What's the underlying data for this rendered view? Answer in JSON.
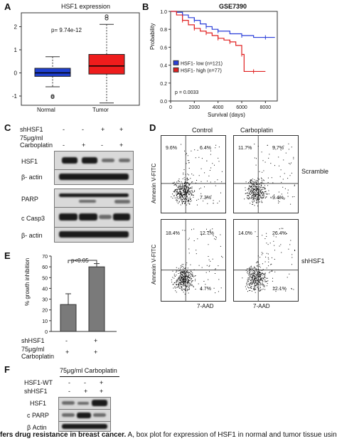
{
  "panel_a": {
    "letter": "A",
    "title": "HSF1 expression",
    "pvalue": "p= 9.74e-12",
    "categories": [
      "Normal",
      "Tumor"
    ],
    "yticks": [
      "2",
      "1",
      "0",
      "-1"
    ]
  },
  "panel_b": {
    "letter": "B",
    "title": "GSE7390",
    "ylabel": "Probability",
    "xlabel": "Survival (days)",
    "xticks": [
      "0",
      "2000",
      "4000",
      "6000",
      "8000"
    ],
    "yticks": [
      "0.0",
      "0.2",
      "0.4",
      "0.6",
      "0.8",
      "1.0"
    ],
    "legend": [
      "HSF1- low (n=121)",
      "HSF1- high (n=77)"
    ],
    "pvalue": "p = 0.0033",
    "colors": {
      "low": "#2b3fd9",
      "high": "#e02020"
    }
  },
  "panel_c": {
    "letter": "C",
    "row1_label": "shHSF1",
    "row1_signs": [
      "-",
      "-",
      "+",
      "+"
    ],
    "row2_label_a": "75μg/ml",
    "row2_label_b": "Carboplatin",
    "row2_signs": [
      "-",
      "+",
      "-",
      "+"
    ],
    "blots": [
      "HSF1",
      "β- actin",
      "PARP",
      "c Casp3",
      "β- actin"
    ]
  },
  "panel_d": {
    "letter": "D",
    "col_titles": [
      "Control",
      "Carboplatin"
    ],
    "row_titles": [
      "Scramble",
      "shHSF1"
    ],
    "ylabel": "Annexin V-FITC",
    "xlabel": "7-AAD",
    "plots": [
      {
        "ul": "9.6%",
        "ur": "6.4%",
        "lr": "7.3%"
      },
      {
        "ul": "11.7%",
        "ur": "9.7%",
        "lr": "9.4%"
      },
      {
        "ul": "18.4%",
        "ur": "12.7%",
        "lr": "4.7%"
      },
      {
        "ul": "14.0%",
        "ur": "26.4%",
        "lr": "12.1%"
      }
    ]
  },
  "panel_e": {
    "letter": "E",
    "ylabel": "% growth inhibition",
    "yticks": [
      "70",
      "60",
      "50",
      "40",
      "30",
      "20",
      "10",
      "0"
    ],
    "sig": "p<0.05",
    "row1_label": "shHSF1",
    "row1_signs": [
      "-",
      "+"
    ],
    "row2_label_a": "75μg/ml",
    "row2_label_b": "Carboplatin",
    "row2_signs": [
      "+",
      "+"
    ]
  },
  "panel_f": {
    "letter": "F",
    "header": "75μg/ml Carboplatin",
    "row1_label": "HSF1-WT",
    "row1_signs": [
      "-",
      "-",
      "+"
    ],
    "row2_label": "shHSF1",
    "row2_signs": [
      "-",
      "+",
      "+"
    ],
    "blots": [
      "HSF1",
      "c PARP",
      "β Actin"
    ]
  },
  "caption": {
    "bold": "fers drug resistance in breast cancer.",
    "rest": " A, box plot for expression of HSF1 in normal and tumor tissue using TCGA"
  },
  "chart_data": [
    {
      "type": "box",
      "title": "HSF1 expression",
      "categories": [
        "Normal",
        "Tumor"
      ],
      "boxes": [
        {
          "name": "Normal",
          "whisker_low": -0.6,
          "q1": -0.15,
          "median": 0.0,
          "q3": 0.2,
          "whisker_high": 0.7,
          "outliers": [
            -1.0,
            -1.05
          ],
          "color": "#1f3fd0"
        },
        {
          "name": "Tumor",
          "whisker_low": -1.3,
          "q1": -0.05,
          "median": 0.3,
          "q3": 0.8,
          "whisker_high": 2.1,
          "outliers": [
            2.35,
            2.45
          ],
          "color": "#ee1c1c"
        }
      ],
      "ylim": [
        -1.4,
        2.6
      ]
    },
    {
      "type": "line",
      "title": "GSE7390",
      "xlabel": "Survival (days)",
      "ylabel": "Probability",
      "xlim": [
        0,
        9000
      ],
      "ylim": [
        0,
        1
      ],
      "series": [
        {
          "name": "HSF1- low (n=121)",
          "x": [
            0,
            500,
            1000,
            1500,
            2000,
            2500,
            3000,
            3500,
            4000,
            5000,
            6000,
            7000,
            8000,
            8800
          ],
          "y": [
            1.0,
            0.99,
            0.96,
            0.93,
            0.9,
            0.86,
            0.83,
            0.8,
            0.78,
            0.75,
            0.73,
            0.71,
            0.71,
            0.71
          ]
        },
        {
          "name": "HSF1- high (n=77)",
          "x": [
            0,
            500,
            1000,
            1500,
            2000,
            2500,
            3000,
            3500,
            4000,
            4500,
            5000,
            5500,
            6000,
            6200,
            7000,
            8000
          ],
          "y": [
            1.0,
            0.96,
            0.9,
            0.85,
            0.81,
            0.78,
            0.76,
            0.73,
            0.7,
            0.68,
            0.66,
            0.62,
            0.52,
            0.33,
            0.33,
            0.33
          ]
        }
      ]
    },
    {
      "type": "bar",
      "ylabel": "% growth inhibition",
      "categories": [
        "shHSF1 - / Carboplatin +",
        "shHSF1 + / Carboplatin +"
      ],
      "values": [
        25,
        60
      ],
      "errors": [
        10,
        3
      ],
      "ylim": [
        0,
        70
      ]
    }
  ]
}
